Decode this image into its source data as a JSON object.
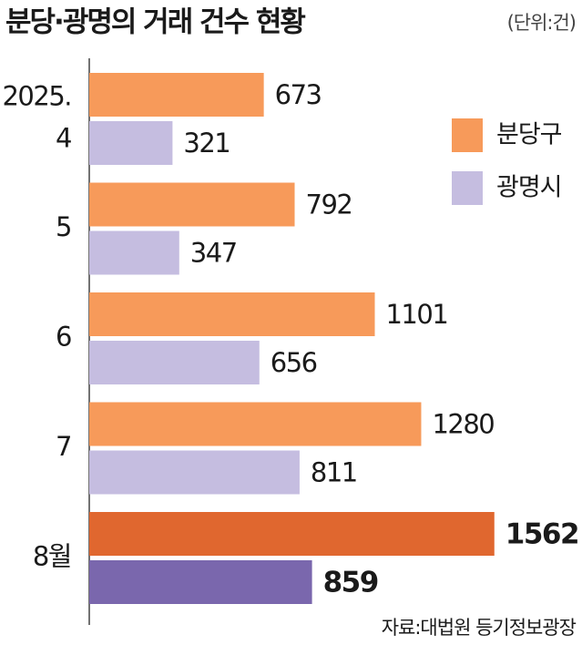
{
  "chart_data": {
    "type": "bar",
    "orientation": "horizontal",
    "title": "분당·광명의 거래 건수 현황",
    "unit": "(단위:건)",
    "source": "자료:대법원 등기정보광장",
    "categories": [
      "2025.\n4",
      "5",
      "6",
      "7",
      "8월"
    ],
    "series": [
      {
        "name": "분당구",
        "color": "#f79a5a",
        "values": [
          673,
          792,
          1101,
          1280,
          1562
        ],
        "colors": [
          "#f79a5a",
          "#f79a5a",
          "#f79a5a",
          "#f79a5a",
          "#e0672f"
        ]
      },
      {
        "name": "광명시",
        "color": "#c5bde0",
        "values": [
          321,
          347,
          656,
          811,
          859
        ],
        "colors": [
          "#c5bde0",
          "#c5bde0",
          "#c5bde0",
          "#c5bde0",
          "#7a67ad"
        ]
      }
    ],
    "xlim": [
      0,
      1900
    ],
    "legend": "upper right"
  }
}
